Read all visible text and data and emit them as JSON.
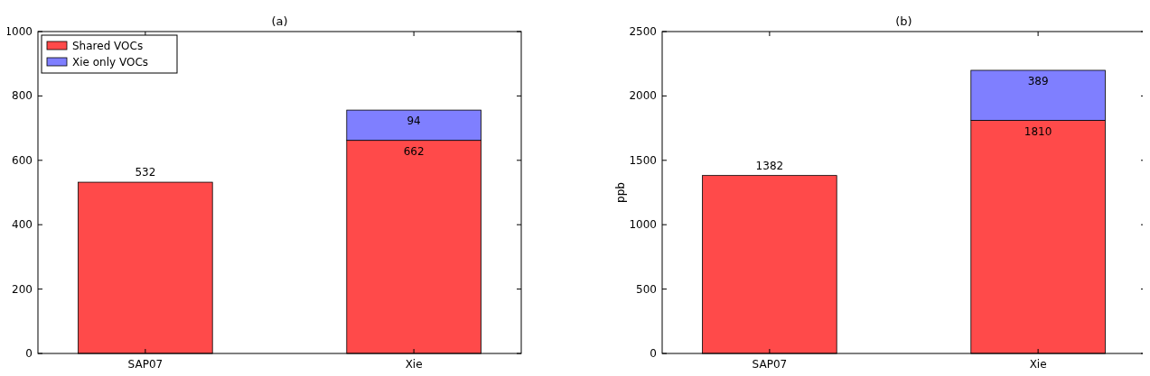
{
  "chart_data": [
    {
      "type": "bar",
      "title": "(a)",
      "categories": [
        "SAP07",
        "Xie"
      ],
      "stacked": true,
      "series": [
        {
          "name": "Shared VOCs",
          "color": "#ff4a4a",
          "values": [
            532,
            662
          ]
        },
        {
          "name": "Xie only VOCs",
          "color": "#7f7fff",
          "values": [
            null,
            94
          ]
        }
      ],
      "ylim": [
        0,
        1000
      ],
      "yticks": [
        0,
        200,
        400,
        600,
        800,
        1000
      ],
      "data_labels": true,
      "legend": "top left",
      "grid": false
    },
    {
      "type": "bar",
      "title": "(b)",
      "ylabel": "ppb",
      "categories": [
        "SAP07",
        "Xie"
      ],
      "stacked": true,
      "series": [
        {
          "color": "#ff4a4a",
          "values": [
            1382,
            1810
          ]
        },
        {
          "color": "#7f7fff",
          "values": [
            null,
            389
          ]
        }
      ],
      "ylim": [
        0,
        2500
      ],
      "yticks": [
        0,
        500,
        1000,
        1500,
        2000,
        2500
      ],
      "data_labels": true,
      "grid": false
    }
  ]
}
